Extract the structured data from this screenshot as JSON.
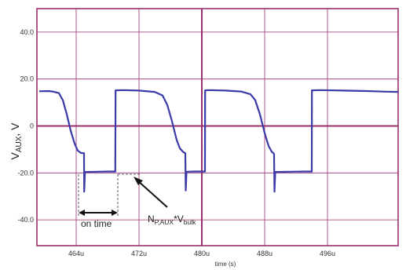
{
  "chart_data": {
    "type": "line",
    "ylabel_main": "V",
    "ylabel_sub": "AUX",
    "ylabel_tail": ", V",
    "xlabel": "time (s)",
    "xlim": [
      459,
      505
    ],
    "ylim": [
      -51,
      50
    ],
    "y_ticks": [
      {
        "v": 40,
        "label": "40.0"
      },
      {
        "v": 20,
        "label": "20.0"
      },
      {
        "v": 0,
        "label": "0"
      },
      {
        "v": -20,
        "label": "-20.0"
      },
      {
        "v": -40,
        "label": "-40.0"
      }
    ],
    "x_ticks": [
      {
        "v": 464,
        "label": "464u"
      },
      {
        "v": 472,
        "label": "472u"
      },
      {
        "v": 480,
        "label": "480u"
      },
      {
        "v": 488,
        "label": "488u"
      },
      {
        "v": 496,
        "label": "496u"
      }
    ],
    "grid": true,
    "emphasis_lines": {
      "x": 480,
      "y": 0
    },
    "colors": {
      "trace": "#3a3aa8",
      "grid": "#9a2f6e",
      "text": "#222222"
    },
    "series": [
      {
        "points": [
          [
            459.3,
            14.8
          ],
          [
            460.5,
            14.9
          ],
          [
            461.0,
            14.7
          ],
          [
            461.8,
            14.0
          ],
          [
            462.3,
            11.0
          ],
          [
            462.8,
            5.0
          ],
          [
            463.3,
            -2.0
          ],
          [
            463.8,
            -7.5
          ],
          [
            464.2,
            -10.5
          ],
          [
            464.6,
            -11.5
          ],
          [
            465.0,
            -11.6
          ],
          [
            465.02,
            -28.0
          ],
          [
            465.12,
            -19.6
          ],
          [
            466.5,
            -19.5
          ],
          [
            468.0,
            -19.4
          ],
          [
            468.98,
            -19.4
          ],
          [
            469.02,
            15.2
          ],
          [
            470.0,
            15.3
          ],
          [
            472.0,
            15.1
          ],
          [
            474.0,
            14.5
          ],
          [
            475.0,
            13.0
          ],
          [
            475.6,
            9.0
          ],
          [
            476.2,
            2.0
          ],
          [
            476.8,
            -6.0
          ],
          [
            477.2,
            -9.5
          ],
          [
            477.6,
            -11.0
          ],
          [
            477.9,
            -11.6
          ],
          [
            477.95,
            -27.5
          ],
          [
            478.05,
            -19.5
          ],
          [
            479.0,
            -19.4
          ],
          [
            480.4,
            -19.4
          ],
          [
            480.42,
            15.2
          ],
          [
            481.0,
            15.3
          ],
          [
            483.0,
            15.1
          ],
          [
            485.0,
            14.7
          ],
          [
            486.2,
            13.5
          ],
          [
            486.8,
            11.0
          ],
          [
            487.4,
            5.0
          ],
          [
            488.0,
            -3.0
          ],
          [
            488.5,
            -8.5
          ],
          [
            488.9,
            -11.0
          ],
          [
            489.2,
            -11.8
          ],
          [
            489.25,
            -28.0
          ],
          [
            489.35,
            -19.6
          ],
          [
            491.0,
            -19.5
          ],
          [
            493.0,
            -19.4
          ],
          [
            494.0,
            -19.4
          ],
          [
            494.02,
            15.2
          ],
          [
            495.0,
            15.3
          ],
          [
            498.0,
            15.1
          ],
          [
            501.0,
            14.9
          ],
          [
            503.5,
            14.6
          ],
          [
            505.0,
            14.5
          ]
        ]
      }
    ],
    "annotations": {
      "on_time": "on time",
      "np_main": "N",
      "np_sub": "P,AUX",
      "np_mid": "*V",
      "np_sub2": "bulk"
    }
  }
}
